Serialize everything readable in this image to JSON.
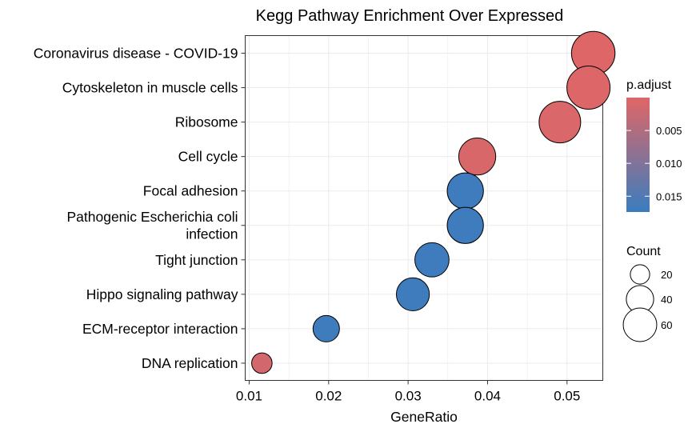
{
  "chart_data": {
    "type": "scatter",
    "title": "Kegg Pathway Enrichment Over Expressed",
    "xlabel": "GeneRatio",
    "ylabel": "",
    "xlim": [
      0.0095,
      0.0545
    ],
    "x_ticks": [
      "0.01",
      "0.02",
      "0.03",
      "0.04",
      "0.05"
    ],
    "x_tick_values": [
      0.01,
      0.02,
      0.03,
      0.04,
      0.05
    ],
    "grid": true,
    "points": [
      {
        "category": [
          "Coronavirus disease - COVID-19"
        ],
        "gene_ratio": 0.0533,
        "count": 68,
        "p_adjust": 0.0002
      },
      {
        "category": [
          "Cytoskeleton in muscle cells"
        ],
        "gene_ratio": 0.0527,
        "count": 67,
        "p_adjust": 0.0003
      },
      {
        "category": [
          "Ribosome"
        ],
        "gene_ratio": 0.0491,
        "count": 62,
        "p_adjust": 0.0006
      },
      {
        "category": [
          "Cell cycle"
        ],
        "gene_ratio": 0.0387,
        "count": 49,
        "p_adjust": 0.0008
      },
      {
        "category": [
          "Focal adhesion"
        ],
        "gene_ratio": 0.0372,
        "count": 47,
        "p_adjust": 0.017
      },
      {
        "category": [
          "Pathogenic Escherichia coli",
          "infection"
        ],
        "gene_ratio": 0.0372,
        "count": 47,
        "p_adjust": 0.017
      },
      {
        "category": [
          "Tight junction"
        ],
        "gene_ratio": 0.033,
        "count": 42,
        "p_adjust": 0.017
      },
      {
        "category": [
          "Hippo signaling pathway"
        ],
        "gene_ratio": 0.0306,
        "count": 39,
        "p_adjust": 0.017
      },
      {
        "category": [
          "ECM-receptor interaction"
        ],
        "gene_ratio": 0.0197,
        "count": 25,
        "p_adjust": 0.017
      },
      {
        "category": [
          "DNA replication"
        ],
        "gene_ratio": 0.0116,
        "count": 15,
        "p_adjust": 0.0015
      }
    ],
    "color_legend": {
      "title": "p.adjust",
      "labels": [
        "0.005",
        "0.010",
        "0.015"
      ],
      "values": [
        0.005,
        0.01,
        0.015
      ],
      "range": [
        0.0,
        0.0174
      ],
      "low_color": "#E06666",
      "high_color": "#3A7DBF",
      "placement": "right"
    },
    "size_legend": {
      "title": "Count",
      "labels": [
        "20",
        "40",
        "60"
      ],
      "values": [
        20,
        40,
        60
      ],
      "placement": "right"
    }
  }
}
